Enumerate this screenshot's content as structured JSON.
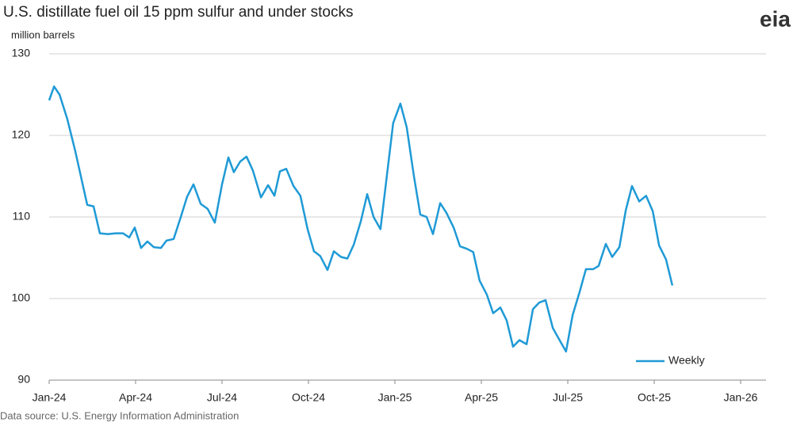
{
  "chart_data": {
    "type": "line",
    "title": "U.S. distillate fuel oil 15 ppm sulfur  and under stocks",
    "y_label": "million barrels",
    "logo": "eia",
    "source": "Data source: U.S. Energy Information Administration",
    "xlim": [
      0,
      24.88
    ],
    "xticks": [
      {
        "value": 0,
        "label": "Jan-24"
      },
      {
        "value": 3,
        "label": "Apr-24"
      },
      {
        "value": 6,
        "label": "Jul-24"
      },
      {
        "value": 9,
        "label": "Oct-24"
      },
      {
        "value": 12,
        "label": "Jan-25"
      },
      {
        "value": 15,
        "label": "Apr-25"
      },
      {
        "value": 18,
        "label": "Jul-25"
      },
      {
        "value": 21,
        "label": "Oct-25"
      },
      {
        "value": 24,
        "label": "Jan-26"
      }
    ],
    "ylim": [
      90,
      130
    ],
    "yticks": [
      90,
      100,
      110,
      120,
      130
    ],
    "grid": true,
    "legend": "lower right",
    "x": [
      0,
      0.17,
      0.36,
      0.63,
      0.91,
      1.13,
      1.32,
      1.54,
      1.76,
      2.04,
      2.31,
      2.56,
      2.78,
      2.97,
      3.19,
      3.41,
      3.63,
      3.88,
      4.07,
      4.32,
      4.57,
      4.79,
      5.01,
      5.26,
      5.5,
      5.75,
      6.0,
      6.22,
      6.41,
      6.63,
      6.85,
      7.07,
      7.35,
      7.6,
      7.82,
      8.01,
      8.23,
      8.48,
      8.72,
      8.97,
      9.19,
      9.41,
      9.66,
      9.88,
      10.13,
      10.35,
      10.57,
      10.82,
      11.04,
      11.26,
      11.5,
      11.72,
      11.94,
      12.19,
      12.41,
      12.66,
      12.88,
      13.1,
      13.32,
      13.57,
      13.79,
      14.04,
      14.26,
      14.5,
      14.72,
      14.94,
      15.19,
      15.41,
      15.66,
      15.88,
      16.1,
      16.32,
      16.57,
      16.79,
      17.01,
      17.23,
      17.48,
      17.7,
      17.94,
      18.17,
      18.41,
      18.63,
      18.88,
      19.07,
      19.32,
      19.54,
      19.79,
      20.01,
      20.23,
      20.48,
      20.72,
      20.95,
      21.17,
      21.41,
      21.63
    ],
    "series": [
      {
        "name": "Weekly",
        "color": "#1f9ad6",
        "values": [
          124.3,
          126,
          125,
          122,
          118,
          114.5,
          111.5,
          111.3,
          108,
          107.9,
          108,
          108,
          107.5,
          108.7,
          106.2,
          107,
          106.3,
          106.2,
          107.1,
          107.3,
          110,
          112.5,
          114,
          111.6,
          111,
          109.3,
          114,
          117.3,
          115.5,
          116.8,
          117.4,
          115.7,
          112.4,
          113.9,
          112.6,
          115.6,
          115.9,
          113.8,
          112.6,
          108.5,
          105.8,
          105.2,
          103.5,
          105.8,
          105.1,
          104.9,
          106.6,
          109.5,
          112.8,
          110,
          108.5,
          115,
          121.5,
          123.9,
          121,
          115,
          110.3,
          110,
          107.9,
          111.7,
          110.5,
          108.7,
          106.4,
          106.1,
          105.7,
          102.2,
          100.5,
          98.2,
          98.9,
          97.3,
          94.1,
          94.9,
          94.4,
          98.7,
          99.5,
          99.8,
          96.4,
          95,
          93.5,
          98,
          100.8,
          103.6,
          103.6,
          104,
          106.7,
          105.1,
          106.3,
          110.8,
          113.8,
          111.9,
          112.6,
          110.7,
          106.5,
          104.8,
          101.6
        ]
      }
    ]
  }
}
